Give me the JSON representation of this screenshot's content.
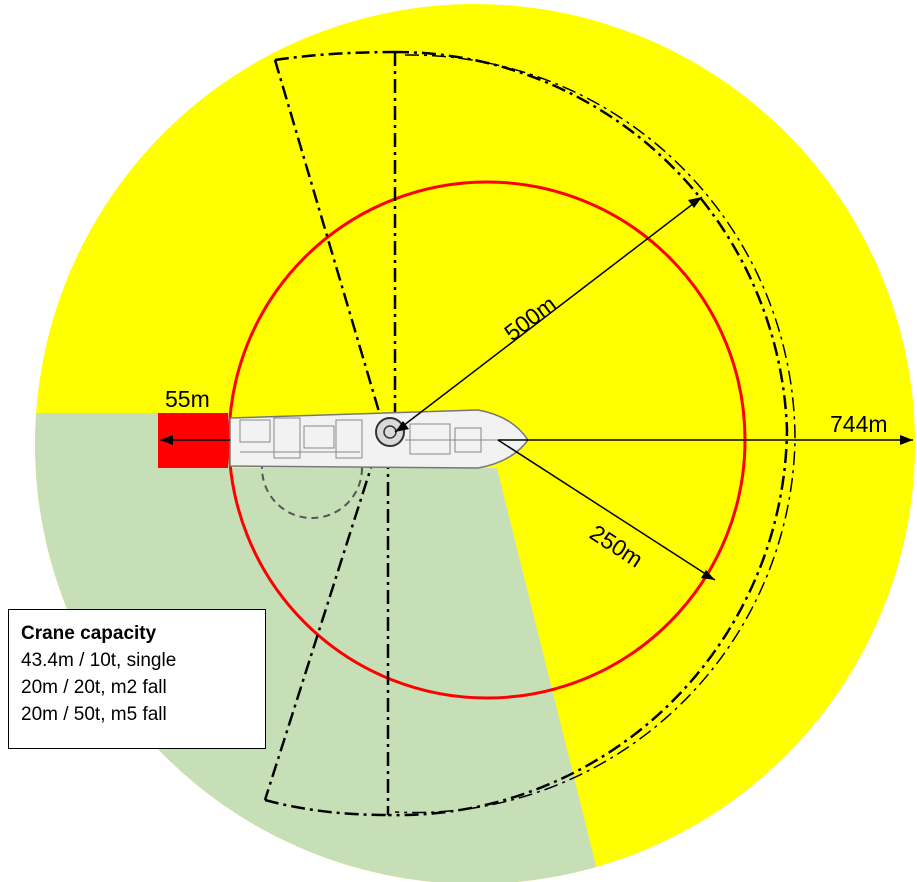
{
  "labels": {
    "radius_500": "500m",
    "radius_250": "250m",
    "radius_744": "744m",
    "offset_55": "55m"
  },
  "crane_capacity": {
    "title": "Crane capacity",
    "rows": [
      "43.4m / 10t, single",
      "20m / 20t, m2 fall",
      "20m / 50t, m5 fall"
    ]
  },
  "colors": {
    "outer_zone": "#ffff00",
    "restricted_zone": "#c6dfb7",
    "inner_circle": "#ff0000",
    "offset_block": "#ff0000"
  }
}
